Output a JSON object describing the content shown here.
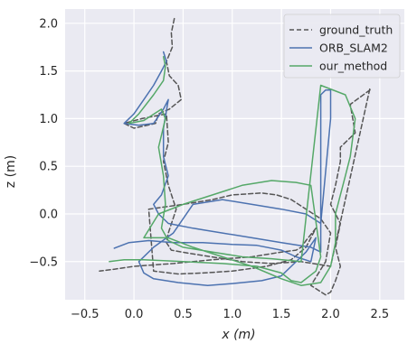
{
  "chart_data": {
    "type": "line",
    "xlabel": "x (m)",
    "ylabel": "z (m)",
    "xlim": [
      -0.7,
      2.75
    ],
    "ylim": [
      -0.9,
      2.15
    ],
    "xticks": [
      -0.5,
      0.0,
      0.5,
      1.0,
      1.5,
      2.0,
      2.5
    ],
    "xtick_labels": [
      "−0.5",
      "0.0",
      "0.5",
      "1.0",
      "1.5",
      "2.0",
      "2.5"
    ],
    "yticks": [
      -0.5,
      0.0,
      0.5,
      1.0,
      1.5,
      2.0
    ],
    "ytick_labels": [
      "−0.5",
      "0.0",
      "0.5",
      "1.0",
      "1.5",
      "2.0"
    ],
    "grid": true,
    "legend_position": "top-right",
    "series": [
      {
        "name": "ground_truth",
        "color": "#555555",
        "style": "dashed",
        "x": [
          0.41,
          0.38,
          0.39,
          0.33,
          0.36,
          0.45,
          0.48,
          0.36,
          0.25,
          0.22,
          0.0,
          -0.1,
          0.08,
          0.33,
          0.35,
          0.3,
          0.35,
          0.43,
          0.35,
          0.33,
          0.38,
          0.6,
          0.85,
          1.1,
          1.4,
          1.7,
          2.0,
          2.4,
          2.4,
          2.2,
          2.25,
          2.1,
          2.1,
          2.05,
          2.0,
          2.1,
          2.05,
          2.1,
          2.05,
          2.0,
          1.95,
          1.8,
          1.95,
          2.0,
          1.9,
          1.75,
          1.6,
          1.45,
          1.3,
          1.0,
          0.8,
          0.5,
          0.15,
          0.2,
          0.45,
          0.7,
          1.0,
          1.35,
          1.6,
          1.75,
          1.85,
          1.75,
          1.7,
          1.65,
          1.5,
          1.2,
          0.8,
          0.4,
          0.0,
          -0.2,
          -0.35
        ],
        "y": [
          2.05,
          1.9,
          1.75,
          1.6,
          1.45,
          1.35,
          1.2,
          1.1,
          1.05,
          0.95,
          0.9,
          0.95,
          1.0,
          1.05,
          0.75,
          0.55,
          0.3,
          0.05,
          -0.2,
          -0.3,
          -0.38,
          -0.42,
          -0.46,
          -0.5,
          -0.52,
          -0.5,
          -0.55,
          1.32,
          1.3,
          1.15,
          0.85,
          0.7,
          0.55,
          0.3,
          0.1,
          -0.1,
          -0.35,
          -0.55,
          -0.7,
          -0.82,
          -0.85,
          -0.75,
          -0.5,
          -0.2,
          -0.05,
          0.05,
          0.15,
          0.2,
          0.22,
          0.2,
          0.15,
          0.1,
          0.05,
          -0.6,
          -0.63,
          -0.62,
          -0.6,
          -0.55,
          -0.48,
          -0.35,
          -0.15,
          -0.28,
          -0.35,
          -0.38,
          -0.4,
          -0.45,
          -0.48,
          -0.52,
          -0.55,
          -0.58,
          -0.6
        ]
      },
      {
        "name": "ORB_SLAM2",
        "color": "#4c72b0",
        "style": "solid",
        "x": [
          0.3,
          0.33,
          0.28,
          0.2,
          0.1,
          0.0,
          -0.1,
          0.05,
          0.2,
          0.3,
          0.35,
          0.3,
          0.3,
          0.35,
          0.28,
          0.2,
          0.25,
          0.35,
          0.6,
          0.9,
          1.2,
          1.5,
          1.8,
          1.9,
          1.9,
          1.95,
          2.0,
          2.0,
          1.9,
          1.75,
          1.5,
          1.2,
          0.9,
          0.6,
          0.4,
          0.2,
          0.05,
          0.1,
          0.2,
          0.45,
          0.75,
          1.0,
          1.3,
          1.5,
          1.6,
          1.75,
          1.85,
          1.8,
          1.65,
          1.5,
          1.25,
          1.0,
          0.7,
          0.4,
          0.15,
          -0.05,
          -0.2
        ],
        "y": [
          1.7,
          1.6,
          1.5,
          1.35,
          1.2,
          1.05,
          0.95,
          0.93,
          0.95,
          1.1,
          1.2,
          0.9,
          0.6,
          0.4,
          0.2,
          0.1,
          0.0,
          -0.1,
          -0.15,
          -0.2,
          -0.25,
          -0.3,
          -0.35,
          -0.4,
          1.25,
          1.3,
          1.3,
          1.0,
          -0.1,
          0.0,
          0.05,
          0.1,
          0.15,
          0.1,
          -0.2,
          -0.35,
          -0.5,
          -0.62,
          -0.68,
          -0.72,
          -0.75,
          -0.73,
          -0.7,
          -0.65,
          -0.55,
          -0.4,
          -0.25,
          -0.5,
          -0.45,
          -0.38,
          -0.33,
          -0.32,
          -0.3,
          -0.3,
          -0.28,
          -0.3,
          -0.36
        ]
      },
      {
        "name": "our_method",
        "color": "#55a868",
        "style": "solid",
        "x": [
          0.3,
          0.32,
          0.3,
          0.2,
          0.05,
          -0.05,
          0.1,
          0.28,
          0.32,
          0.25,
          0.3,
          0.32,
          0.28,
          0.35,
          0.5,
          0.8,
          1.1,
          1.4,
          1.7,
          1.9,
          2.15,
          2.25,
          2.2,
          2.15,
          2.1,
          2.05,
          2.05,
          2.0,
          1.9,
          1.7,
          1.5,
          1.2,
          0.9,
          0.6,
          0.35,
          0.1,
          0.25,
          0.5,
          0.8,
          1.1,
          1.4,
          1.65,
          1.8,
          1.9,
          1.85,
          1.7,
          1.6,
          1.5,
          1.25,
          0.9,
          0.5,
          0.1,
          -0.1,
          -0.25
        ],
        "y": [
          1.65,
          1.55,
          1.4,
          1.25,
          1.05,
          0.95,
          0.98,
          1.1,
          1.0,
          0.7,
          0.4,
          0.1,
          -0.15,
          -0.28,
          -0.35,
          -0.4,
          -0.45,
          -0.47,
          -0.5,
          1.35,
          1.25,
          1.0,
          0.6,
          0.4,
          0.2,
          0.0,
          -0.3,
          -0.55,
          -0.72,
          -0.75,
          -0.68,
          -0.55,
          -0.45,
          -0.35,
          -0.25,
          -0.25,
          0.0,
          0.1,
          0.2,
          0.3,
          0.35,
          0.33,
          0.3,
          -0.45,
          -0.6,
          -0.72,
          -0.7,
          -0.62,
          -0.55,
          -0.52,
          -0.5,
          -0.48,
          -0.48,
          -0.5
        ]
      }
    ]
  }
}
